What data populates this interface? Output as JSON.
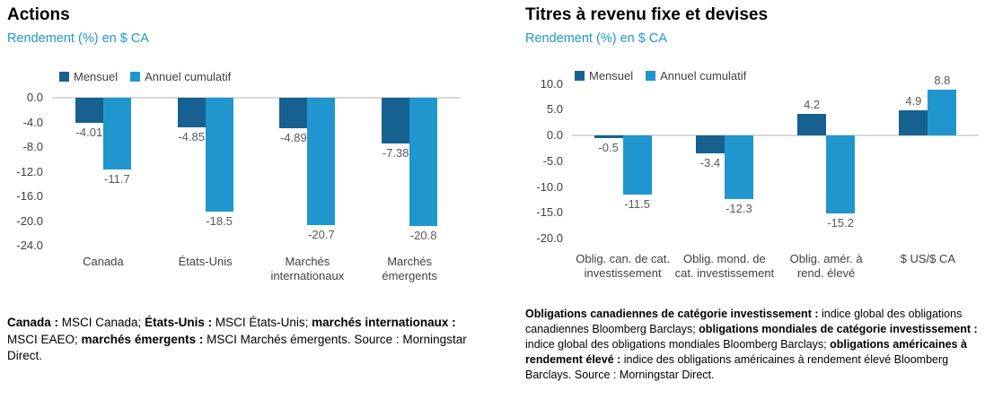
{
  "colors": {
    "dark_blue": "#16618f",
    "light_blue": "#1f97ce",
    "subtitle_blue": "#1f97ce",
    "value_label_gray": "#595959",
    "axis_text": "#404040",
    "zero_line_gray": "#d9d9d9"
  },
  "chart_data": [
    {
      "type": "bar",
      "title": "Actions",
      "subtitle": "Rendement (%) en $ CA",
      "legend": [
        "Mensuel",
        "Annuel cumulatif"
      ],
      "legend_position": "top",
      "grid": false,
      "xlabel": "",
      "ylabel": "Rendement (%) en $ CA",
      "categories": [
        "Canada",
        "États-Unis",
        "Marchés internationaux",
        "Marchés émergents"
      ],
      "series": [
        {
          "name": "Mensuel",
          "color": "#16618f",
          "values": [
            -4.01,
            -4.85,
            -4.89,
            -7.38
          ],
          "labels": [
            "-4.01",
            "-4.85",
            "-4.89",
            "-7.38"
          ]
        },
        {
          "name": "Annuel cumulatif",
          "color": "#1f97ce",
          "values": [
            -11.7,
            -18.5,
            -20.7,
            -20.8
          ],
          "labels": [
            "-11.7",
            "-18.5",
            "-20.7",
            "-20.8"
          ]
        }
      ],
      "ylim": [
        -24,
        0
      ],
      "yticks": [
        0,
        -4,
        -8,
        -12,
        -16,
        -20,
        -24
      ],
      "ytick_labels": [
        "0.0",
        "-4.0",
        "-8.0",
        "-12.0",
        "-16.0",
        "-20.0",
        "-24.0"
      ]
    },
    {
      "type": "bar",
      "title": "Titres à revenu fixe et devises",
      "subtitle": "Rendement (%) en $ CA",
      "legend": [
        "Mensuel",
        "Annuel cumulatif"
      ],
      "legend_position": "top",
      "grid": false,
      "xlabel": "",
      "ylabel": "Rendement (%) en $ CA",
      "categories": [
        "Oblig. can. de cat. investissement",
        "Oblig. mond. de cat. investissement",
        "Oblig. amér. à rend. élevé",
        "$ US/$ CA"
      ],
      "series": [
        {
          "name": "Mensuel",
          "color": "#16618f",
          "values": [
            -0.5,
            -3.4,
            4.2,
            4.9
          ],
          "labels": [
            "-0.5",
            "-3.4",
            "4.2",
            "4.9"
          ]
        },
        {
          "name": "Annuel cumulatif",
          "color": "#1f97ce",
          "values": [
            -11.5,
            -12.3,
            -15.2,
            8.8
          ],
          "labels": [
            "-11.5",
            "-12.3",
            "-15.2",
            "8.8"
          ]
        }
      ],
      "ylim": [
        -20,
        10
      ],
      "yticks": [
        10,
        5,
        0,
        -5,
        -10,
        -15,
        -20
      ],
      "ytick_labels": [
        "10.0",
        "5.0",
        "0.0",
        "-5.0",
        "-10.0",
        "-15.0",
        "-20.0"
      ]
    }
  ],
  "footnotes": [
    {
      "segments": [
        {
          "text": "Canada : ",
          "bold": true
        },
        {
          "text": "MSCI Canada; ",
          "bold": false
        },
        {
          "text": "États-Unis : ",
          "bold": true
        },
        {
          "text": "MSCI États-Unis; ",
          "bold": false
        },
        {
          "text": "marchés internationaux : ",
          "bold": true
        },
        {
          "text": "MSCI EAEO; ",
          "bold": false
        },
        {
          "text": "marchés émergents : ",
          "bold": true
        },
        {
          "text": "MSCI Marchés émergents. Source : Morningstar Direct.",
          "bold": false
        }
      ]
    },
    {
      "segments": [
        {
          "text": "Obligations canadiennes de catégorie investissement : ",
          "bold": true
        },
        {
          "text": "indice global des obligations canadiennes Bloomberg Barclays; ",
          "bold": false
        },
        {
          "text": "obligations mondiales de catégorie investissement : ",
          "bold": true
        },
        {
          "text": "indice global des obligations mondiales Bloomberg Barclays; ",
          "bold": false
        },
        {
          "text": "obligations américaines à rendement élevé : ",
          "bold": true
        },
        {
          "text": "indice des obligations américaines à rendement élevé Bloomberg Barclays. Source : Morningstar Direct.",
          "bold": false
        }
      ]
    }
  ]
}
